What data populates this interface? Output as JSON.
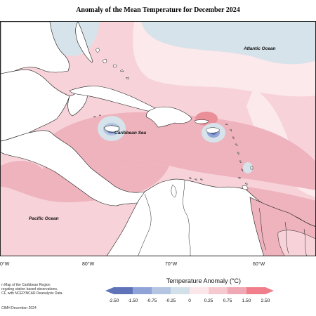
{
  "title": "Anomaly of the Mean Temperature for December 2024",
  "labels": {
    "atlantic": "Atlantic Ocean",
    "caribbean": "Caribbean Sea",
    "pacific": "Pacific Ocean"
  },
  "longitude_ticks": [
    "0°W",
    "80°W",
    "70°W",
    "60°W"
  ],
  "credits": [
    "n Map of the Caribbean Region",
    "regating station based observations,",
    "CF, with NCEP/NCAR Reanalysis Data."
  ],
  "footer": "CIMH December 2024",
  "legend": {
    "title": "Temperature Anomaly (°C)",
    "labels": [
      "-2.50",
      "-1.50",
      "-0.75",
      "-0.25",
      "0",
      "0.25",
      "0.75",
      "1.50",
      "2.50"
    ],
    "colors": [
      "#5f74b8",
      "#8fa3d8",
      "#b4c5e2",
      "#d2e0ea",
      "#fbe7ea",
      "#f6c9d1",
      "#efa9b4",
      "#f07f8b"
    ]
  },
  "colors": {
    "land": "#ffffff",
    "coast": "#1a1a1a",
    "anomaly_025_075": "#f7d3d9",
    "anomaly_075_150": "#efb3bd",
    "anomaly_150_250": "#ea8e98",
    "anomaly_0_025": "#fbe9ec",
    "anomaly_neg": "#d6e3ea"
  }
}
